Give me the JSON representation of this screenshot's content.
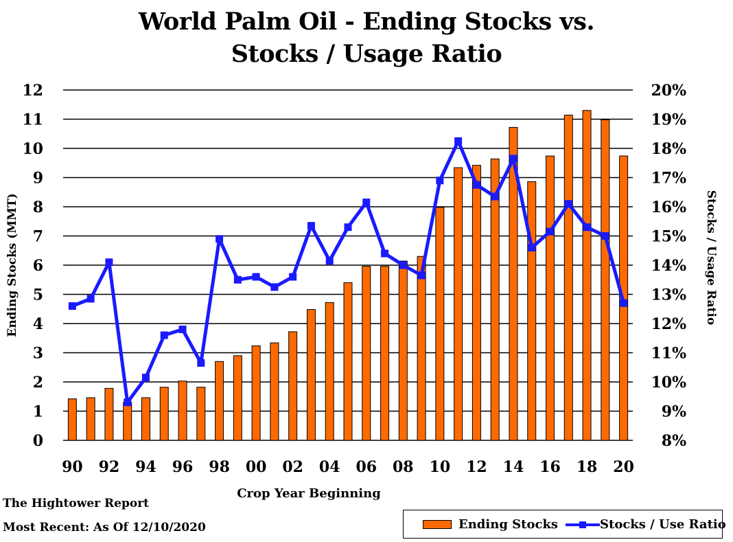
{
  "title_line1": "World Palm Oil - Ending Stocks vs.",
  "title_line2": "Stocks / Usage Ratio",
  "footer": {
    "source": "The Hightower Report",
    "date": "Most Recent: As Of 12/10/2020"
  },
  "legend": {
    "bar_label": "Ending Stocks",
    "line_label": "Stocks / Use Ratio"
  },
  "colors": {
    "bar": "#FF6A00",
    "line": "#1A1AFF",
    "grid": "#000000"
  },
  "chart_data": {
    "type": "bar",
    "xlabel": "Crop Year Beginning",
    "ylabel": "Ending Stocks (MMT)",
    "y2label": "Stocks / Usage Ratio",
    "categories": [
      "90",
      "91",
      "92",
      "93",
      "94",
      "95",
      "96",
      "97",
      "98",
      "99",
      "00",
      "01",
      "02",
      "03",
      "04",
      "05",
      "06",
      "07",
      "08",
      "09",
      "10",
      "11",
      "12",
      "13",
      "14",
      "15",
      "16",
      "17",
      "18",
      "19",
      "20"
    ],
    "x_tick_labels": [
      "90",
      "92",
      "94",
      "96",
      "98",
      "00",
      "02",
      "04",
      "06",
      "08",
      "10",
      "12",
      "14",
      "16",
      "18",
      "20"
    ],
    "ylim": [
      0,
      12
    ],
    "y_ticks": [
      "0",
      "1",
      "2",
      "3",
      "4",
      "5",
      "6",
      "7",
      "8",
      "9",
      "10",
      "11",
      "12"
    ],
    "y2lim": [
      8,
      20
    ],
    "y2_ticks": [
      "8%",
      "9%",
      "10%",
      "11%",
      "12%",
      "13%",
      "14%",
      "15%",
      "16%",
      "17%",
      "18%",
      "19%",
      "20%"
    ],
    "grid": true,
    "legend_position": "bottom-right",
    "series": [
      {
        "name": "Ending Stocks",
        "type": "bar",
        "axis": "left",
        "values": [
          1.42,
          1.46,
          1.78,
          1.3,
          1.46,
          1.82,
          2.03,
          1.82,
          2.7,
          2.9,
          3.24,
          3.34,
          3.72,
          4.48,
          4.72,
          5.4,
          5.96,
          5.96,
          6.14,
          6.3,
          7.98,
          9.34,
          9.42,
          9.64,
          10.72,
          8.86,
          9.74,
          11.14,
          11.3,
          10.98,
          9.74
        ]
      },
      {
        "name": "Stocks / Use Ratio",
        "type": "line",
        "axis": "right",
        "values": [
          12.6,
          12.85,
          14.1,
          9.3,
          10.15,
          11.6,
          11.8,
          10.65,
          14.9,
          13.5,
          13.6,
          13.25,
          13.6,
          15.35,
          14.15,
          15.3,
          16.15,
          14.4,
          14.0,
          13.65,
          16.9,
          18.25,
          16.75,
          16.35,
          17.65,
          14.6,
          15.15,
          16.1,
          15.3,
          15.0,
          12.7
        ]
      }
    ]
  }
}
